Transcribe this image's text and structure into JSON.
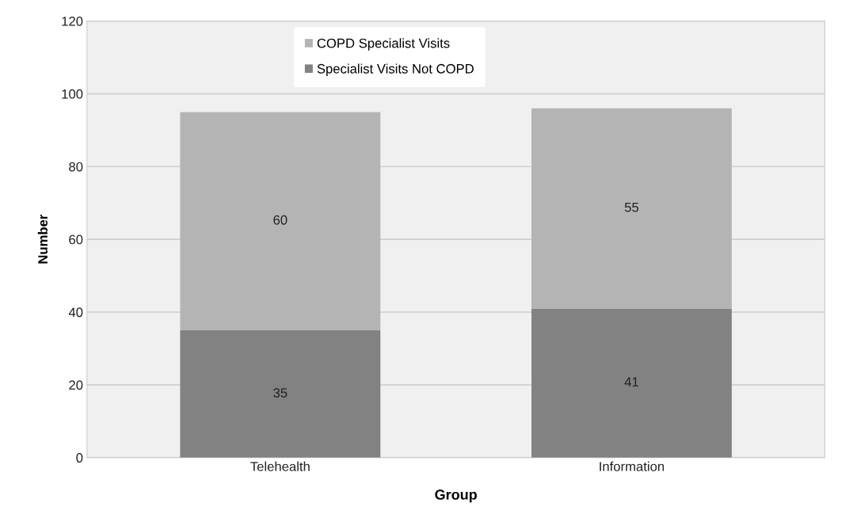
{
  "chart_data": {
    "type": "bar",
    "stacked": true,
    "xlabel": "Group",
    "ylabel": "Number",
    "categories": [
      "Telehealth",
      "Information"
    ],
    "series": [
      {
        "name": "Specialist Visits Not COPD",
        "color": "#828282",
        "values": [
          35,
          41
        ]
      },
      {
        "name": "COPD Specialist Visits",
        "color": "#b4b4b4",
        "values": [
          60,
          55
        ]
      }
    ],
    "ylim": [
      0,
      120
    ],
    "yticks": [
      0,
      20,
      40,
      60,
      80,
      100,
      120
    ],
    "grid": "y",
    "legend": "top",
    "data_labels": true
  }
}
